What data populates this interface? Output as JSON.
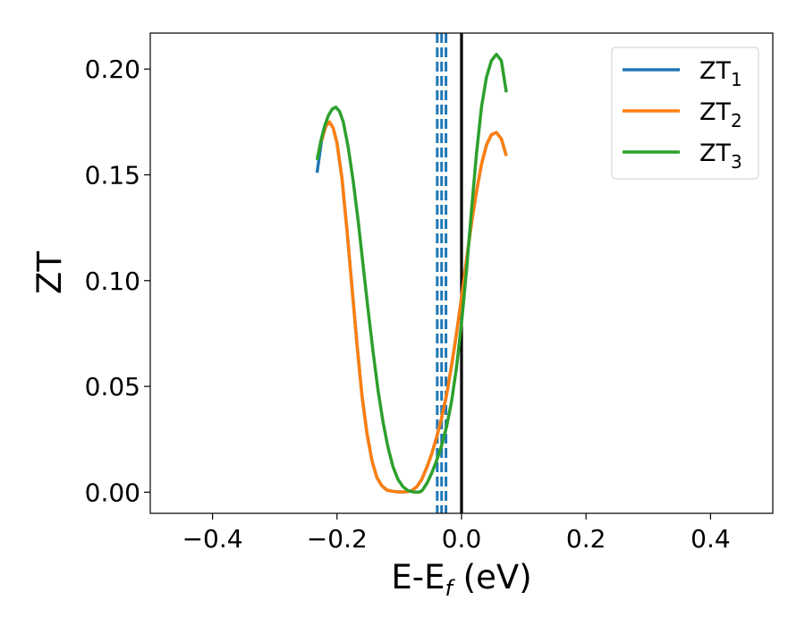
{
  "chart_data": {
    "type": "line",
    "xlabel": {
      "main": "E-E",
      "sub": "f",
      "suffix": " (eV)"
    },
    "ylabel": "ZT",
    "xlim": [
      -0.5,
      0.5
    ],
    "ylim": [
      -0.01,
      0.217
    ],
    "xticks": [
      -0.4,
      -0.2,
      0.0,
      0.2,
      0.4
    ],
    "xtick_labels": [
      "−0.4",
      "−0.2",
      "0.0",
      "0.2",
      "0.4"
    ],
    "yticks": [
      0.0,
      0.05,
      0.1,
      0.15,
      0.2
    ],
    "ytick_labels": [
      "0.00",
      "0.05",
      "0.10",
      "0.15",
      "0.20"
    ],
    "grid": false,
    "legend_position": "top-right",
    "series": [
      {
        "name": "ZT",
        "sub": "1",
        "color": "#1f77b4",
        "style": "solid",
        "x": [
          -0.232,
          -0.225,
          -0.218,
          -0.212,
          -0.206,
          -0.2,
          -0.192,
          -0.184,
          -0.176,
          -0.168,
          -0.16,
          -0.152,
          -0.144,
          -0.136,
          -0.128,
          -0.12,
          -0.112,
          -0.104,
          -0.096,
          -0.088,
          -0.08,
          -0.072,
          -0.064,
          -0.056,
          -0.048,
          -0.04,
          -0.032,
          -0.024,
          -0.016,
          -0.008,
          0.0,
          0.008,
          0.016,
          0.024,
          0.032,
          0.04,
          0.048,
          0.056,
          0.064,
          0.072
        ],
        "y": [
          0.151,
          0.166,
          0.173,
          0.175,
          0.172,
          0.165,
          0.148,
          0.124,
          0.097,
          0.07,
          0.046,
          0.028,
          0.015,
          0.007,
          0.003,
          0.001,
          0.0005,
          0.0002,
          0.0001,
          0.0002,
          0.0007,
          0.0025,
          0.006,
          0.0115,
          0.018,
          0.026,
          0.035,
          0.046,
          0.06,
          0.075,
          0.092,
          0.11,
          0.127,
          0.142,
          0.155,
          0.164,
          0.169,
          0.17,
          0.167,
          0.159
        ]
      },
      {
        "name": "ZT",
        "sub": "2",
        "color": "#ff7f0e",
        "style": "solid",
        "x": [
          -0.225,
          -0.218,
          -0.212,
          -0.206,
          -0.2,
          -0.192,
          -0.184,
          -0.176,
          -0.168,
          -0.16,
          -0.152,
          -0.144,
          -0.136,
          -0.128,
          -0.12,
          -0.112,
          -0.104,
          -0.096,
          -0.088,
          -0.08,
          -0.072,
          -0.064,
          -0.056,
          -0.048,
          -0.04,
          -0.032,
          -0.024,
          -0.016,
          -0.008,
          0.0,
          0.008,
          0.016,
          0.024,
          0.032,
          0.04,
          0.048,
          0.056,
          0.064,
          0.072
        ],
        "y": [
          0.166,
          0.173,
          0.175,
          0.172,
          0.165,
          0.148,
          0.124,
          0.097,
          0.07,
          0.046,
          0.028,
          0.015,
          0.007,
          0.003,
          0.001,
          0.0005,
          0.0002,
          0.0001,
          0.0002,
          0.0007,
          0.0025,
          0.006,
          0.0115,
          0.018,
          0.026,
          0.035,
          0.046,
          0.06,
          0.075,
          0.092,
          0.11,
          0.127,
          0.142,
          0.155,
          0.164,
          0.169,
          0.17,
          0.167,
          0.159
        ]
      },
      {
        "name": "ZT",
        "sub": "3",
        "color": "#2ca02c",
        "style": "solid",
        "x": [
          -0.232,
          -0.226,
          -0.22,
          -0.214,
          -0.208,
          -0.202,
          -0.196,
          -0.19,
          -0.182,
          -0.174,
          -0.166,
          -0.158,
          -0.15,
          -0.142,
          -0.134,
          -0.126,
          -0.118,
          -0.11,
          -0.102,
          -0.094,
          -0.086,
          -0.078,
          -0.07,
          -0.066,
          -0.062,
          -0.055,
          -0.048,
          -0.04,
          -0.032,
          -0.024,
          -0.016,
          -0.008,
          0.0,
          0.008,
          0.016,
          0.024,
          0.032,
          0.04,
          0.048,
          0.056,
          0.064,
          0.072
        ],
        "y": [
          0.157,
          0.166,
          0.173,
          0.178,
          0.181,
          0.182,
          0.18,
          0.175,
          0.163,
          0.147,
          0.128,
          0.107,
          0.086,
          0.066,
          0.048,
          0.033,
          0.021,
          0.012,
          0.006,
          0.0025,
          0.0008,
          0.0001,
          0.0,
          0.0002,
          0.0012,
          0.0045,
          0.009,
          0.015,
          0.022,
          0.031,
          0.043,
          0.059,
          0.08,
          0.105,
          0.133,
          0.16,
          0.182,
          0.196,
          0.204,
          0.207,
          0.204,
          0.189
        ]
      }
    ],
    "vertical_lines": [
      {
        "x": 0.0,
        "color": "#000000",
        "style": "solid"
      },
      {
        "x": -0.039,
        "color": "#1f77b4",
        "style": "dashed"
      },
      {
        "x": -0.032,
        "color": "#1f77b4",
        "style": "dashed"
      },
      {
        "x": -0.025,
        "color": "#1f77b4",
        "style": "dashed"
      }
    ]
  }
}
